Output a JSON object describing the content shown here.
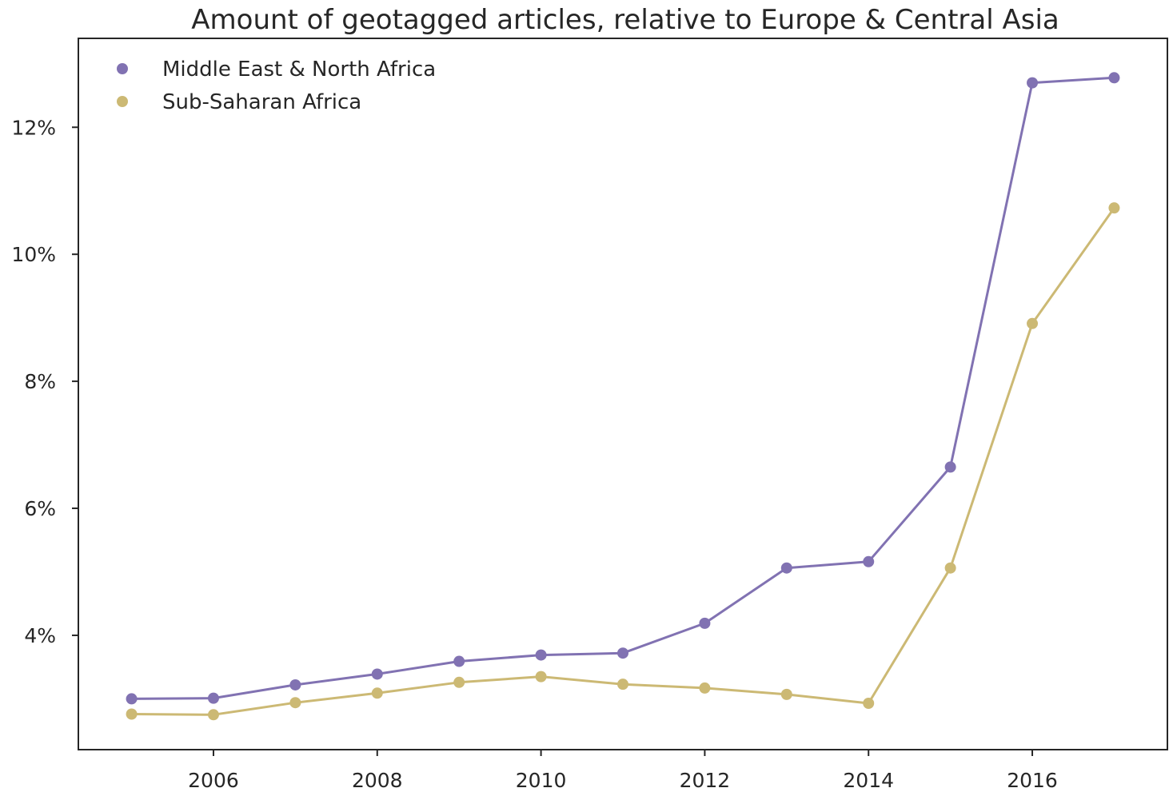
{
  "chart_data": {
    "type": "line",
    "title": "Amount of geotagged articles, relative to Europe & Central Asia",
    "xlabel": "",
    "ylabel": "",
    "x": [
      2005,
      2006,
      2007,
      2008,
      2009,
      2010,
      2011,
      2012,
      2013,
      2014,
      2015,
      2016,
      2017
    ],
    "xlim": [
      2004.35,
      2017.65
    ],
    "ylim": [
      2.2,
      13.4
    ],
    "x_ticks": [
      2006,
      2008,
      2010,
      2012,
      2014,
      2016
    ],
    "x_tick_labels": [
      "2006",
      "2008",
      "2010",
      "2012",
      "2014",
      "2016"
    ],
    "y_ticks": [
      4,
      6,
      8,
      10,
      12
    ],
    "y_tick_labels": [
      "4%",
      "6%",
      "8%",
      "10%",
      "12%"
    ],
    "y_unit": "%",
    "grid": false,
    "legend_position": "top-left",
    "series": [
      {
        "name": "Middle East & North Africa",
        "color": "#8172b2",
        "values": [
          3.0,
          3.01,
          3.22,
          3.39,
          3.59,
          3.69,
          3.72,
          4.19,
          5.06,
          5.16,
          6.65,
          12.7,
          12.78
        ]
      },
      {
        "name": "Sub-Saharan Africa",
        "color": "#ccb974",
        "values": [
          2.76,
          2.75,
          2.94,
          3.09,
          3.26,
          3.35,
          3.23,
          3.17,
          3.07,
          2.93,
          5.06,
          8.91,
          10.73
        ]
      }
    ]
  }
}
